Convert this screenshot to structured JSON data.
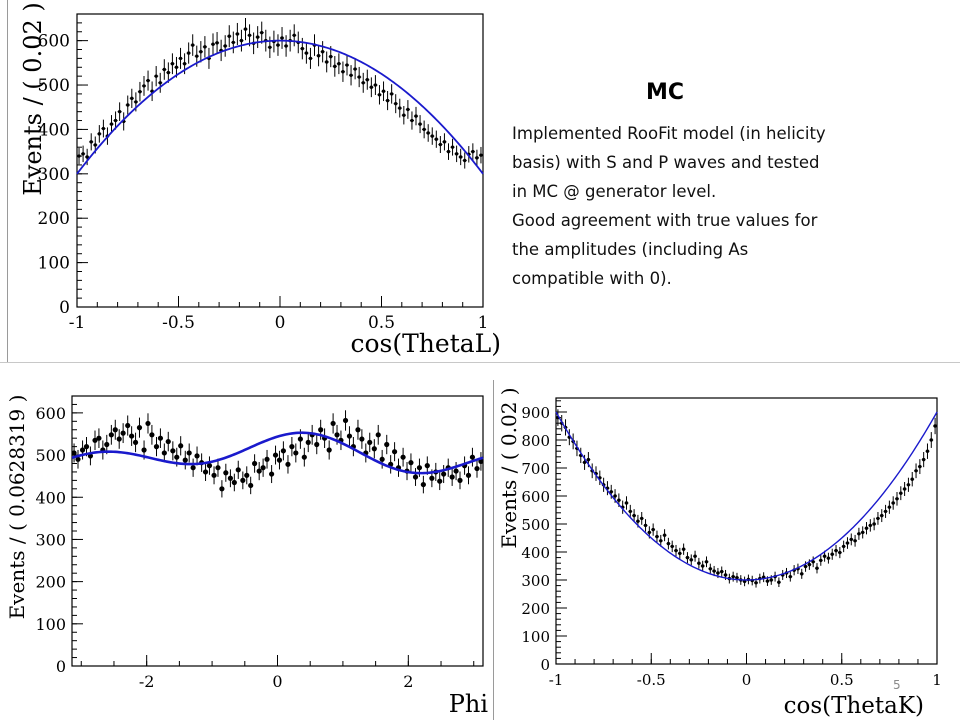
{
  "slide": {
    "title": "MC",
    "description": [
      "Implemented RooFit model (in helicity",
      "basis) with S and P waves and tested",
      "in MC @ generator level.",
      "Good agreement with true values for",
      "the amplitudes (including As",
      "compatible with 0)."
    ],
    "page_number": "5"
  },
  "colors": {
    "fit_curve": "#1a1acc",
    "data_points": "#000000"
  },
  "chart_data": [
    {
      "type": "scatter",
      "title": "",
      "xlabel": "cos(ThetaL)",
      "ylabel": "Events / ( 0.02 )",
      "xlim": [
        -1,
        1
      ],
      "ylim": [
        0,
        660
      ],
      "xticks": [
        "-1",
        "-0.5",
        "0",
        "0.5",
        "1"
      ],
      "yticks": [
        "0",
        "100",
        "200",
        "300",
        "400",
        "500",
        "600"
      ],
      "series": [
        {
          "kind": "data_points_with_errors",
          "x": [
            -0.99,
            -0.97,
            -0.95,
            -0.93,
            -0.91,
            -0.89,
            -0.87,
            -0.85,
            -0.83,
            -0.81,
            -0.79,
            -0.77,
            -0.75,
            -0.73,
            -0.71,
            -0.69,
            -0.67,
            -0.65,
            -0.63,
            -0.61,
            -0.59,
            -0.57,
            -0.55,
            -0.53,
            -0.51,
            -0.49,
            -0.47,
            -0.45,
            -0.43,
            -0.41,
            -0.39,
            -0.37,
            -0.35,
            -0.33,
            -0.31,
            -0.29,
            -0.27,
            -0.25,
            -0.23,
            -0.21,
            -0.19,
            -0.17,
            -0.15,
            -0.13,
            -0.11,
            -0.09,
            -0.07,
            -0.05,
            -0.03,
            -0.01,
            0.01,
            0.03,
            0.05,
            0.07,
            0.09,
            0.11,
            0.13,
            0.15,
            0.17,
            0.19,
            0.21,
            0.23,
            0.25,
            0.27,
            0.29,
            0.31,
            0.33,
            0.35,
            0.37,
            0.39,
            0.41,
            0.43,
            0.45,
            0.47,
            0.49,
            0.51,
            0.53,
            0.55,
            0.57,
            0.59,
            0.61,
            0.63,
            0.65,
            0.67,
            0.69,
            0.71,
            0.73,
            0.75,
            0.77,
            0.79,
            0.81,
            0.83,
            0.85,
            0.87,
            0.89,
            0.91,
            0.93,
            0.95,
            0.97,
            0.99
          ],
          "y": [
            340,
            345,
            338,
            372,
            365,
            390,
            402,
            385,
            412,
            420,
            440,
            418,
            455,
            470,
            462,
            485,
            498,
            510,
            486,
            520,
            505,
            535,
            528,
            548,
            540,
            560,
            548,
            572,
            590,
            565,
            575,
            586,
            560,
            592,
            595,
            578,
            588,
            610,
            596,
            615,
            600,
            626,
            612,
            594,
            608,
            618,
            600,
            585,
            598,
            590,
            606,
            588,
            600,
            612,
            596,
            582,
            572,
            560,
            590,
            566,
            575,
            552,
            564,
            542,
            548,
            530,
            545,
            522,
            536,
            518,
            505,
            512,
            495,
            500,
            478,
            486,
            465,
            480,
            458,
            448,
            432,
            445,
            420,
            430,
            412,
            400,
            392,
            385,
            378,
            366,
            372,
            350,
            360,
            345,
            338,
            330,
            344,
            350,
            336,
            342
          ]
        },
        {
          "kind": "fit_curve",
          "name": "",
          "model": "y = 600 - 300*x^2"
        }
      ]
    },
    {
      "type": "scatter",
      "title": "",
      "xlabel": "Phi",
      "ylabel": "Events / ( 0.0628319 )",
      "xlim": [
        -3.14159,
        3.14159
      ],
      "ylim": [
        0,
        640
      ],
      "xticks": [
        "-2",
        "0",
        "2"
      ],
      "yticks": [
        "0",
        "100",
        "200",
        "300",
        "400",
        "500",
        "600"
      ],
      "series": [
        {
          "kind": "data_points_with_errors",
          "x": [
            -3.11,
            -3.05,
            -2.98,
            -2.92,
            -2.86,
            -2.79,
            -2.73,
            -2.67,
            -2.61,
            -2.54,
            -2.48,
            -2.42,
            -2.36,
            -2.29,
            -2.23,
            -2.17,
            -2.11,
            -2.04,
            -1.98,
            -1.92,
            -1.85,
            -1.79,
            -1.73,
            -1.67,
            -1.6,
            -1.54,
            -1.48,
            -1.41,
            -1.35,
            -1.29,
            -1.23,
            -1.16,
            -1.1,
            -1.04,
            -0.97,
            -0.91,
            -0.85,
            -0.79,
            -0.72,
            -0.66,
            -0.6,
            -0.53,
            -0.47,
            -0.41,
            -0.35,
            -0.28,
            -0.22,
            -0.16,
            -0.09,
            -0.03,
            0.03,
            0.09,
            0.16,
            0.22,
            0.28,
            0.35,
            0.41,
            0.47,
            0.53,
            0.6,
            0.66,
            0.72,
            0.79,
            0.85,
            0.91,
            0.97,
            1.04,
            1.1,
            1.16,
            1.23,
            1.29,
            1.35,
            1.41,
            1.48,
            1.54,
            1.6,
            1.67,
            1.73,
            1.79,
            1.85,
            1.92,
            1.98,
            2.04,
            2.11,
            2.17,
            2.23,
            2.29,
            2.36,
            2.42,
            2.48,
            2.54,
            2.61,
            2.67,
            2.73,
            2.79,
            2.86,
            2.92,
            2.98,
            3.05,
            3.11
          ],
          "y": [
            505,
            490,
            512,
            520,
            498,
            535,
            540,
            512,
            525,
            548,
            560,
            538,
            552,
            570,
            545,
            530,
            565,
            512,
            575,
            548,
            520,
            540,
            505,
            532,
            510,
            495,
            522,
            488,
            505,
            470,
            498,
            482,
            460,
            475,
            452,
            470,
            420,
            458,
            445,
            435,
            465,
            440,
            452,
            428,
            480,
            462,
            470,
            490,
            455,
            500,
            488,
            510,
            478,
            520,
            505,
            538,
            495,
            530,
            548,
            525,
            560,
            540,
            512,
            575,
            548,
            535,
            582,
            545,
            520,
            560,
            538,
            505,
            530,
            515,
            548,
            490,
            525,
            478,
            508,
            470,
            495,
            462,
            482,
            448,
            470,
            430,
            475,
            445,
            460,
            438,
            455,
            470,
            448,
            462,
            440,
            475,
            452,
            495,
            468,
            485
          ]
        },
        {
          "kind": "fit_curve",
          "name": "",
          "model": "y = 500 + 25*cos(Phi) + 30*cos(2*Phi - 0.9)"
        }
      ]
    },
    {
      "type": "scatter",
      "title": "",
      "xlabel": "cos(ThetaK)",
      "ylabel": "Events / ( 0.02 )",
      "xlim": [
        -1,
        1
      ],
      "ylim": [
        0,
        950
      ],
      "xticks": [
        "-1",
        "-0.5",
        "0",
        "0.5",
        "1"
      ],
      "yticks": [
        "0",
        "100",
        "200",
        "300",
        "400",
        "500",
        "600",
        "700",
        "800",
        "900"
      ],
      "series": [
        {
          "kind": "data_points_with_errors",
          "x": [
            -0.99,
            -0.97,
            -0.95,
            -0.93,
            -0.91,
            -0.89,
            -0.87,
            -0.85,
            -0.83,
            -0.81,
            -0.79,
            -0.77,
            -0.75,
            -0.73,
            -0.71,
            -0.69,
            -0.67,
            -0.65,
            -0.63,
            -0.61,
            -0.59,
            -0.57,
            -0.55,
            -0.53,
            -0.51,
            -0.49,
            -0.47,
            -0.45,
            -0.43,
            -0.41,
            -0.39,
            -0.37,
            -0.35,
            -0.33,
            -0.31,
            -0.29,
            -0.27,
            -0.25,
            -0.23,
            -0.21,
            -0.19,
            -0.17,
            -0.15,
            -0.13,
            -0.11,
            -0.09,
            -0.07,
            -0.05,
            -0.03,
            -0.01,
            0.01,
            0.03,
            0.05,
            0.07,
            0.09,
            0.11,
            0.13,
            0.15,
            0.17,
            0.19,
            0.21,
            0.23,
            0.25,
            0.27,
            0.29,
            0.31,
            0.33,
            0.35,
            0.37,
            0.39,
            0.41,
            0.43,
            0.45,
            0.47,
            0.49,
            0.51,
            0.53,
            0.55,
            0.57,
            0.59,
            0.61,
            0.63,
            0.65,
            0.67,
            0.69,
            0.71,
            0.73,
            0.75,
            0.77,
            0.79,
            0.81,
            0.83,
            0.85,
            0.87,
            0.89,
            0.91,
            0.93,
            0.95,
            0.97,
            0.99
          ],
          "y": [
            880,
            860,
            845,
            810,
            795,
            770,
            745,
            720,
            730,
            690,
            680,
            665,
            640,
            628,
            615,
            600,
            585,
            560,
            575,
            545,
            530,
            510,
            520,
            495,
            470,
            480,
            455,
            440,
            460,
            430,
            420,
            405,
            395,
            410,
            380,
            372,
            385,
            360,
            350,
            365,
            340,
            332,
            325,
            330,
            318,
            305,
            312,
            308,
            300,
            295,
            302,
            298,
            290,
            305,
            310,
            296,
            300,
            312,
            292,
            318,
            325,
            312,
            335,
            340,
            322,
            348,
            355,
            365,
            342,
            370,
            385,
            378,
            392,
            405,
            398,
            420,
            432,
            445,
            440,
            465,
            470,
            485,
            495,
            500,
            520,
            530,
            545,
            560,
            575,
            590,
            610,
            625,
            640,
            660,
            690,
            705,
            730,
            760,
            800,
            850
          ]
        },
        {
          "kind": "fit_curve",
          "name": "",
          "model": "y = 300 + 600*x^2"
        }
      ]
    }
  ]
}
